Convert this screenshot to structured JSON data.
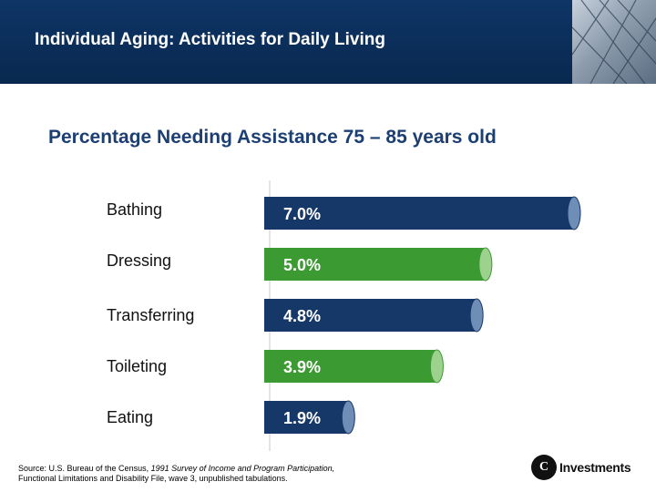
{
  "header": {
    "title": "Individual Aging: Activities for Daily Living"
  },
  "chart_data": {
    "type": "bar",
    "orientation": "horizontal",
    "title": "Percentage Needing Assistance 75 – 85 years old",
    "categories": [
      "Bathing",
      "Dressing",
      "Transferring",
      "Toileting",
      "Eating"
    ],
    "values": [
      7.0,
      5.0,
      4.8,
      3.9,
      1.9
    ],
    "value_labels": [
      "7.0%",
      "5.0%",
      "4.8%",
      "3.9%",
      "1.9%"
    ],
    "bar_colors": [
      "#163868",
      "#3c9a32",
      "#163868",
      "#3c9a32",
      "#163868"
    ],
    "cap_colors": [
      "#6e8db7",
      "#9dd18e",
      "#6e8db7",
      "#9dd18e",
      "#6e8db7"
    ],
    "xlim": [
      0,
      7.0
    ],
    "unit": "%"
  },
  "footer": {
    "source_prefix": "Source: U.S. Bureau of the Census, ",
    "source_title": "1991 Survey of Income and Program Participation,",
    "source_suffix": "Functional Limitations and Disability File, wave 3, unpublished tabulations."
  },
  "logo": {
    "mark": "C",
    "text": "Investments"
  }
}
